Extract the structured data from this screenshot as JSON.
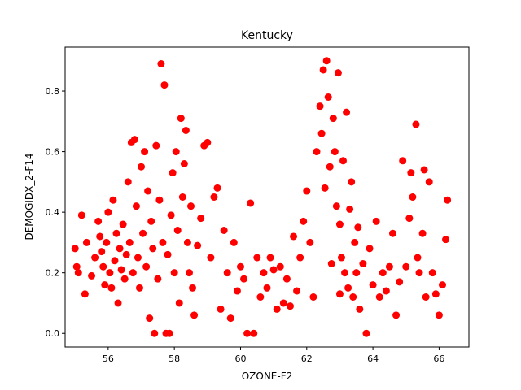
{
  "chart_data": {
    "type": "scatter",
    "title": "Kentucky",
    "xlabel": "OZONE-F2",
    "ylabel": "DEMOGIDX_2-F14",
    "xlim": [
      54.7,
      66.9
    ],
    "ylim": [
      -0.045,
      0.945
    ],
    "xticks": [
      56,
      58,
      60,
      62,
      64,
      66
    ],
    "yticks": [
      0.0,
      0.2,
      0.4,
      0.6,
      0.8
    ],
    "color": "#ff0000",
    "grid": false,
    "legend": "none",
    "series": [
      {
        "points": [
          [
            55.0,
            0.28
          ],
          [
            55.05,
            0.22
          ],
          [
            55.1,
            0.2
          ],
          [
            55.2,
            0.39
          ],
          [
            55.3,
            0.13
          ],
          [
            55.35,
            0.3
          ],
          [
            55.5,
            0.19
          ],
          [
            55.6,
            0.25
          ],
          [
            55.7,
            0.37
          ],
          [
            55.75,
            0.32
          ],
          [
            55.8,
            0.27
          ],
          [
            55.85,
            0.22
          ],
          [
            55.9,
            0.16
          ],
          [
            55.95,
            0.3
          ],
          [
            56.0,
            0.4
          ],
          [
            56.05,
            0.2
          ],
          [
            56.1,
            0.15
          ],
          [
            56.15,
            0.44
          ],
          [
            56.2,
            0.24
          ],
          [
            56.25,
            0.33
          ],
          [
            56.3,
            0.1
          ],
          [
            56.35,
            0.28
          ],
          [
            56.4,
            0.21
          ],
          [
            56.45,
            0.36
          ],
          [
            56.5,
            0.18
          ],
          [
            56.55,
            0.26
          ],
          [
            56.6,
            0.5
          ],
          [
            56.65,
            0.3
          ],
          [
            56.7,
            0.63
          ],
          [
            56.75,
            0.2
          ],
          [
            56.8,
            0.64
          ],
          [
            56.85,
            0.42
          ],
          [
            56.9,
            0.25
          ],
          [
            56.95,
            0.15
          ],
          [
            57.0,
            0.55
          ],
          [
            57.05,
            0.33
          ],
          [
            57.1,
            0.6
          ],
          [
            57.15,
            0.22
          ],
          [
            57.2,
            0.47
          ],
          [
            57.25,
            0.05
          ],
          [
            57.3,
            0.37
          ],
          [
            57.35,
            0.28
          ],
          [
            57.4,
            0.0
          ],
          [
            57.45,
            0.62
          ],
          [
            57.5,
            0.18
          ],
          [
            57.55,
            0.44
          ],
          [
            57.6,
            0.89
          ],
          [
            57.65,
            0.3
          ],
          [
            57.7,
            0.82
          ],
          [
            57.75,
            0.0
          ],
          [
            57.8,
            0.26
          ],
          [
            57.85,
            0.0
          ],
          [
            57.9,
            0.39
          ],
          [
            57.95,
            0.53
          ],
          [
            58.0,
            0.2
          ],
          [
            58.05,
            0.6
          ],
          [
            58.1,
            0.34
          ],
          [
            58.15,
            0.1
          ],
          [
            58.2,
            0.71
          ],
          [
            58.25,
            0.45
          ],
          [
            58.3,
            0.56
          ],
          [
            58.35,
            0.67
          ],
          [
            58.4,
            0.3
          ],
          [
            58.45,
            0.2
          ],
          [
            58.5,
            0.42
          ],
          [
            58.55,
            0.15
          ],
          [
            58.6,
            0.06
          ],
          [
            58.7,
            0.29
          ],
          [
            58.8,
            0.38
          ],
          [
            58.9,
            0.62
          ],
          [
            59.0,
            0.63
          ],
          [
            59.1,
            0.25
          ],
          [
            59.2,
            0.45
          ],
          [
            59.3,
            0.48
          ],
          [
            59.4,
            0.08
          ],
          [
            59.5,
            0.34
          ],
          [
            59.6,
            0.2
          ],
          [
            59.7,
            0.05
          ],
          [
            59.8,
            0.3
          ],
          [
            59.9,
            0.14
          ],
          [
            60.0,
            0.22
          ],
          [
            60.1,
            0.18
          ],
          [
            60.2,
            0.0
          ],
          [
            60.3,
            0.43
          ],
          [
            60.4,
            0.0
          ],
          [
            60.5,
            0.25
          ],
          [
            60.6,
            0.12
          ],
          [
            60.7,
            0.2
          ],
          [
            60.8,
            0.15
          ],
          [
            60.9,
            0.25
          ],
          [
            61.0,
            0.21
          ],
          [
            61.1,
            0.08
          ],
          [
            61.2,
            0.22
          ],
          [
            61.3,
            0.1
          ],
          [
            61.4,
            0.18
          ],
          [
            61.5,
            0.09
          ],
          [
            61.6,
            0.32
          ],
          [
            61.7,
            0.14
          ],
          [
            61.8,
            0.25
          ],
          [
            61.9,
            0.37
          ],
          [
            62.0,
            0.47
          ],
          [
            62.1,
            0.3
          ],
          [
            62.2,
            0.12
          ],
          [
            62.3,
            0.6
          ],
          [
            62.4,
            0.75
          ],
          [
            62.45,
            0.66
          ],
          [
            62.5,
            0.87
          ],
          [
            62.55,
            0.48
          ],
          [
            62.6,
            0.9
          ],
          [
            62.65,
            0.78
          ],
          [
            62.7,
            0.55
          ],
          [
            62.75,
            0.23
          ],
          [
            62.8,
            0.71
          ],
          [
            62.85,
            0.6
          ],
          [
            62.9,
            0.42
          ],
          [
            62.95,
            0.86
          ],
          [
            63.0,
            0.36
          ],
          [
            63.05,
            0.25
          ],
          [
            63.1,
            0.57
          ],
          [
            63.15,
            0.2
          ],
          [
            63.2,
            0.73
          ],
          [
            63.25,
            0.15
          ],
          [
            63.3,
            0.41
          ],
          [
            63.35,
            0.5
          ],
          [
            63.4,
            0.12
          ],
          [
            63.45,
            0.3
          ],
          [
            63.5,
            0.2
          ],
          [
            63.55,
            0.35
          ],
          [
            63.6,
            0.08
          ],
          [
            63.7,
            0.23
          ],
          [
            63.8,
            0.0
          ],
          [
            63.9,
            0.28
          ],
          [
            64.0,
            0.16
          ],
          [
            64.1,
            0.37
          ],
          [
            64.2,
            0.12
          ],
          [
            64.3,
            0.2
          ],
          [
            64.4,
            0.14
          ],
          [
            64.5,
            0.22
          ],
          [
            64.6,
            0.33
          ],
          [
            64.7,
            0.06
          ],
          [
            64.8,
            0.17
          ],
          [
            64.9,
            0.57
          ],
          [
            65.0,
            0.22
          ],
          [
            65.1,
            0.38
          ],
          [
            65.15,
            0.53
          ],
          [
            65.2,
            0.45
          ],
          [
            65.3,
            0.69
          ],
          [
            65.35,
            0.25
          ],
          [
            65.4,
            0.2
          ],
          [
            65.5,
            0.33
          ],
          [
            65.55,
            0.54
          ],
          [
            65.6,
            0.12
          ],
          [
            65.7,
            0.5
          ],
          [
            65.8,
            0.2
          ],
          [
            65.9,
            0.13
          ],
          [
            66.0,
            0.06
          ],
          [
            66.1,
            0.16
          ],
          [
            66.2,
            0.31
          ],
          [
            66.25,
            0.44
          ],
          [
            63.0,
            0.13
          ]
        ]
      }
    ]
  }
}
